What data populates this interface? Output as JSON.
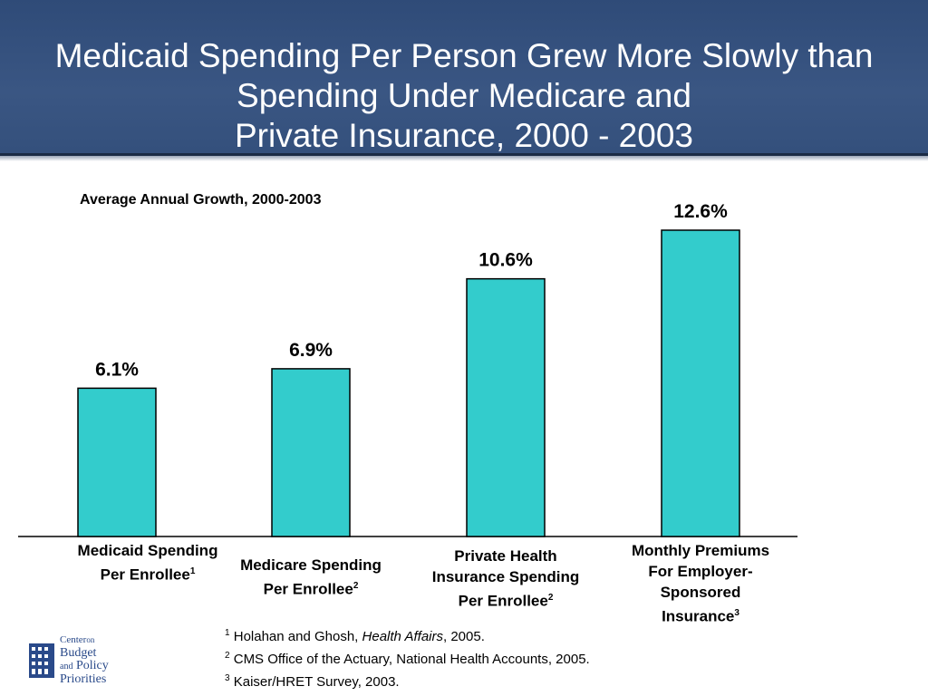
{
  "title_lines": [
    "Medicaid Spending Per Person Grew More Slowly than",
    "Spending Under Medicare and",
    "Private Insurance, 2000 - 2003"
  ],
  "chart_data": {
    "type": "bar",
    "title": "Medicaid Spending Per Person Grew More Slowly than Spending Under Medicare and Private Insurance, 2000 - 2003",
    "subtitle": "Average Annual Growth, 2000-2003",
    "categories": [
      "Medicaid Spending Per Enrollee",
      "Medicare Spending Per Enrollee",
      "Private Health Insurance Spending Per Enrollee",
      "Monthly Premiums For Employer-Sponsored Insurance"
    ],
    "footnote_markers": [
      "1",
      "2",
      "2",
      "3"
    ],
    "values": [
      6.1,
      6.9,
      10.6,
      12.6
    ],
    "value_labels": [
      "6.1%",
      "6.9%",
      "10.6%",
      "12.6%"
    ],
    "unit": "%",
    "ylim": [
      0,
      12.6
    ],
    "grid": false,
    "bar_color": "#33cccc",
    "bar_outline": "#000000"
  },
  "category_label_lines": [
    [
      "Medicaid Spending",
      "Per Enrollee"
    ],
    [
      "Medicare Spending",
      "Per Enrollee"
    ],
    [
      "Private Health",
      "Insurance Spending",
      "Per Enrollee"
    ],
    [
      "Monthly Premiums",
      "For Employer-",
      "Sponsored",
      "Insurance"
    ]
  ],
  "footnotes": [
    {
      "marker": "1",
      "pre": "Holahan and Ghosh, ",
      "italic": "Health Affairs",
      "post": ", 2005."
    },
    {
      "marker": "2",
      "pre": "CMS Office of the Actuary, National Health Accounts, 2005.",
      "italic": "",
      "post": ""
    },
    {
      "marker": "3",
      "pre": "Kaiser/HRET Survey, 2003.",
      "italic": "",
      "post": ""
    }
  ],
  "logo": {
    "line1": "Center",
    "line1b": "on",
    "line2": "Budget",
    "line3a": "and",
    "line3b": "Policy",
    "line4": "Priorities"
  },
  "colors": {
    "header": "#3a5683",
    "bar": "#33cccc"
  }
}
